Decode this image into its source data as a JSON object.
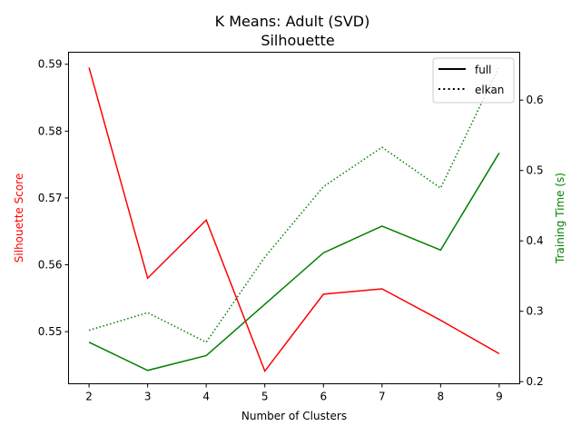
{
  "chart_data": {
    "type": "line",
    "title": "K Means: Adult (SVD)",
    "subtitle": "Silhouette",
    "xlabel": "Number of Clusters",
    "ylabel_left": "Silhouette Score",
    "ylabel_right": "Training Time (s)",
    "colors": {
      "score": "#ff0000",
      "time": "#008000",
      "legend_line": "#000000"
    },
    "x": [
      2,
      3,
      4,
      5,
      6,
      7,
      8,
      9
    ],
    "xlim": [
      1.65,
      9.35
    ],
    "ylim_left": [
      0.5422,
      0.5918
    ],
    "ylim_right": [
      0.197,
      0.668
    ],
    "yticks_left": [
      0.55,
      0.56,
      0.57,
      0.58,
      0.59
    ],
    "yticks_right": [
      0.2,
      0.3,
      0.4,
      0.5,
      0.6
    ],
    "series_left": [
      {
        "name": "full",
        "style": "solid",
        "values": [
          0.5895,
          0.558,
          0.5667,
          0.5441,
          0.5556,
          0.5564,
          0.5517,
          0.5467
        ]
      }
    ],
    "series_right": [
      {
        "name": "full",
        "style": "solid",
        "values": [
          0.256,
          0.216,
          0.237,
          0.31,
          0.383,
          0.421,
          0.387,
          0.525
        ]
      },
      {
        "name": "elkan",
        "style": "dotted",
        "values": [
          0.273,
          0.298,
          0.256,
          0.377,
          0.477,
          0.533,
          0.475,
          0.648
        ]
      }
    ],
    "legend": {
      "placement": "top-right",
      "entries": [
        {
          "label": "full",
          "style": "solid"
        },
        {
          "label": "elkan",
          "style": "dotted"
        }
      ]
    },
    "grid": false
  }
}
